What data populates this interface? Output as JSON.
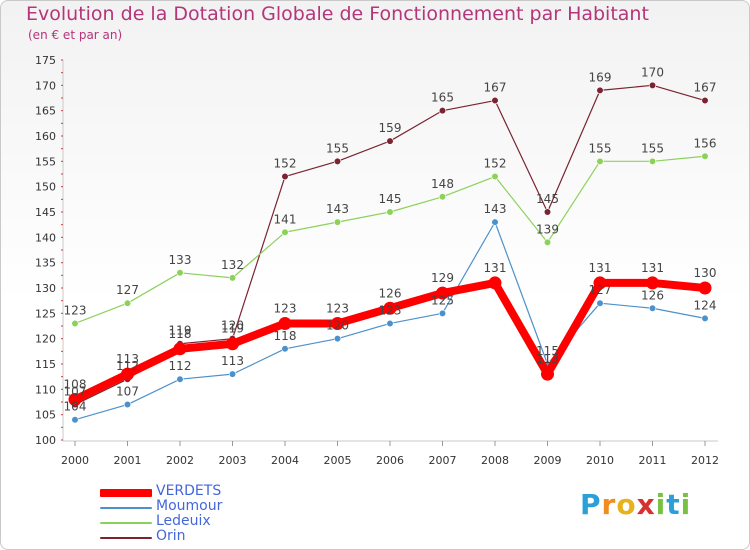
{
  "header": {
    "title": "Evolution de la Dotation Globale de Fonctionnement par Habitant",
    "subtitle": "(en € et par an)"
  },
  "logo": {
    "letters": [
      "P",
      "r",
      "o",
      "x",
      "i",
      "t",
      "i"
    ],
    "colors": [
      "#2a9fd8",
      "#f28c1e",
      "#e8b21c",
      "#d6312f",
      "#7ac143",
      "#2a9fd8",
      "#7ac143"
    ]
  },
  "chart_data": {
    "type": "line",
    "title": "Evolution de la Dotation Globale de Fonctionnement par Habitant",
    "subtitle": "(en € et par an)",
    "xlabel": "",
    "ylabel": "",
    "x": [
      "2000",
      "2001",
      "2002",
      "2003",
      "2004",
      "2005",
      "2006",
      "2007",
      "2008",
      "2009",
      "2010",
      "2011",
      "2012"
    ],
    "ylim": [
      100,
      175
    ],
    "yticks": [
      100,
      105,
      110,
      115,
      120,
      125,
      130,
      135,
      140,
      145,
      150,
      155,
      160,
      165,
      170,
      175
    ],
    "grid": false,
    "legend_position": "bottom-left",
    "series": [
      {
        "name": "Orin",
        "color": "#7a2331",
        "values": [
          107,
          112,
          119,
          120,
          152,
          155,
          159,
          165,
          167,
          145,
          169,
          170,
          167
        ]
      },
      {
        "name": "Ledeuix",
        "color": "#8cd25a",
        "values": [
          123,
          127,
          133,
          132,
          141,
          143,
          145,
          148,
          152,
          139,
          155,
          155,
          156
        ]
      },
      {
        "name": "Moumour",
        "color": "#4d91cc",
        "values": [
          104,
          107,
          112,
          113,
          118,
          120,
          123,
          125,
          143,
          115,
          127,
          126,
          124
        ]
      },
      {
        "name": "VERDETS",
        "color": "#ff0000",
        "values": [
          108,
          113,
          118,
          119,
          123,
          123,
          126,
          129,
          131,
          113,
          131,
          131,
          130
        ]
      }
    ],
    "legend": [
      {
        "name": "VERDETS",
        "color": "#ff0000"
      },
      {
        "name": "Moumour",
        "color": "#4d91cc"
      },
      {
        "name": "Ledeuix",
        "color": "#8cd25a"
      },
      {
        "name": "Orin",
        "color": "#7a2331"
      }
    ]
  }
}
